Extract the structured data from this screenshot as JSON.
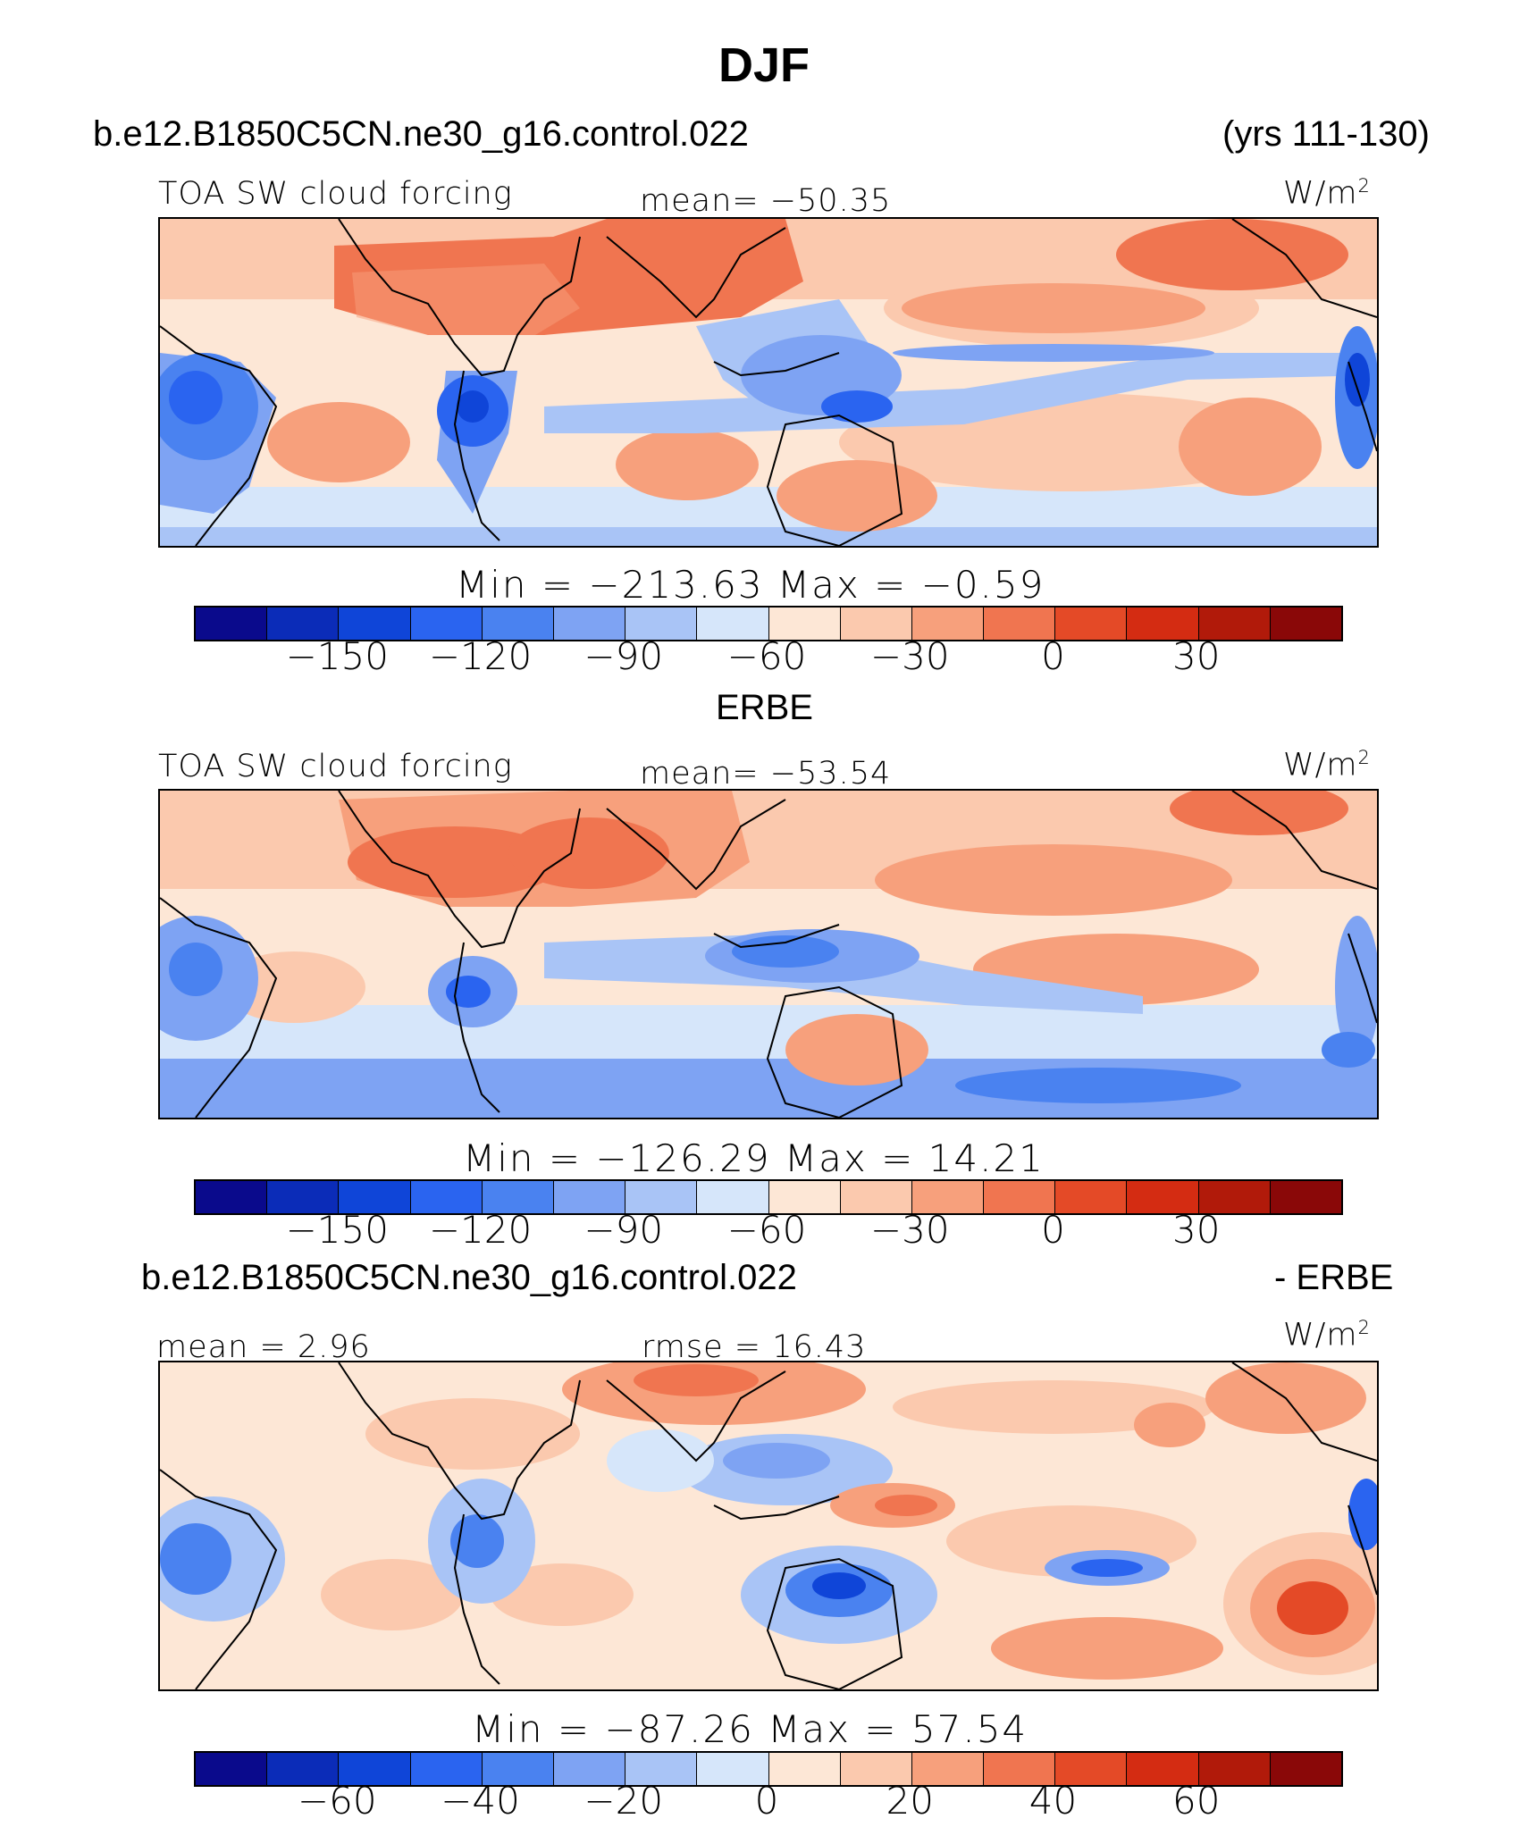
{
  "title": "DJF",
  "header_case": "b.e12.B1850C5CN.ne30_g16.control.022",
  "header_years": "(yrs 111-130)",
  "palette": [
    "#0a0a8c",
    "#0b2cb8",
    "#0f45d8",
    "#2a64f0",
    "#4a82f0",
    "#7ea3f3",
    "#a9c4f6",
    "#d6e6fa",
    "#fde7d6",
    "#fbc9ae",
    "#f7a07c",
    "#f07550",
    "#e44a27",
    "#d42c12",
    "#b11a0a",
    "#8a0808"
  ],
  "panels": [
    {
      "id": "model",
      "subtitle": "",
      "left_label": "TOA SW cloud forcing",
      "center_label": "mean= −50.35",
      "units": "W/m",
      "units_sup": "2",
      "min_max": "Min = −213.63 Max = −0.59",
      "ticks": [
        "−150",
        "−120",
        "−90",
        "−60",
        "−30",
        "0",
        "30"
      ]
    },
    {
      "id": "obs",
      "subtitle": "ERBE",
      "left_label": "TOA SW cloud forcing",
      "center_label": "mean= −53.54",
      "units": "W/m",
      "units_sup": "2",
      "min_max": "Min = −126.29 Max = 14.21",
      "ticks": [
        "−150",
        "−120",
        "−90",
        "−60",
        "−30",
        "0",
        "30"
      ]
    },
    {
      "id": "diff",
      "subtitle_left": "b.e12.B1850C5CN.ne30_g16.control.022",
      "subtitle_right": "- ERBE",
      "left_label": "mean = 2.96",
      "center_label": "rmse = 16.43",
      "units": "W/m",
      "units_sup": "2",
      "min_max": "Min = −87.26 Max = 57.54",
      "ticks": [
        "−60",
        "−40",
        "−20",
        "0",
        "20",
        "40",
        "60"
      ]
    }
  ]
}
